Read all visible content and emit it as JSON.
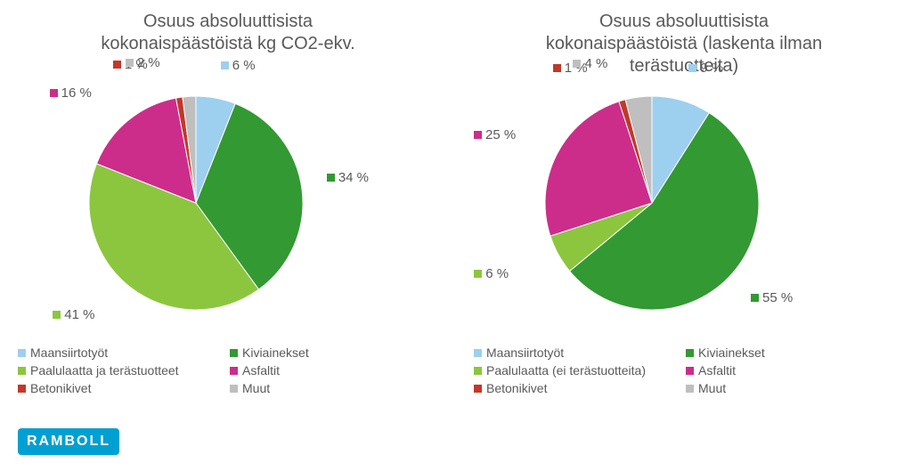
{
  "chart_left": {
    "type": "pie",
    "title": "Osuus absoluuttisista\nkokonaispäästöistä kg CO2-ekv.",
    "title_fontsize": 20,
    "title_color": "#595959",
    "background_color": "#ffffff",
    "label_fontsize": 15,
    "radius": 120,
    "slices": [
      {
        "label": "Maansiirtotyöt",
        "percent": 6,
        "color": "#9dcfef",
        "text": "6 %"
      },
      {
        "label": "Kiviainekset",
        "percent": 34,
        "color": "#339933",
        "text": "34 %"
      },
      {
        "label": "Paalulaatta ja terästuotteet",
        "percent": 41,
        "color": "#8cc63f",
        "text": "41 %"
      },
      {
        "label": "Asfaltit",
        "percent": 16,
        "color": "#cc2d8b",
        "text": "16 %"
      },
      {
        "label": "Betonikivet",
        "percent": 1,
        "color": "#c0392b",
        "text": "1 %"
      },
      {
        "label": "Muut",
        "percent": 2,
        "color": "#bfbfbf",
        "text": "2 %"
      }
    ],
    "legend": [
      {
        "label": "Maansiirtotyöt",
        "color": "#9dcfef"
      },
      {
        "label": "Kiviainekset",
        "color": "#339933"
      },
      {
        "label": "Paalulaatta ja terästuotteet",
        "color": "#8cc63f"
      },
      {
        "label": "Asfaltit",
        "color": "#cc2d8b"
      },
      {
        "label": "Betonikivet",
        "color": "#c0392b"
      },
      {
        "label": "Muut",
        "color": "#bfbfbf"
      }
    ],
    "legend_col_widths": [
      230,
      200
    ]
  },
  "chart_right": {
    "type": "pie",
    "title": "Osuus absoluuttisista\nkokonaispäästöistä (laskenta ilman\nterästuotteita)",
    "title_fontsize": 20,
    "title_color": "#595959",
    "background_color": "#ffffff",
    "label_fontsize": 15,
    "radius": 120,
    "slices": [
      {
        "label": "Maansiirtotyöt",
        "percent": 9,
        "color": "#9dcfef",
        "text": "9 %"
      },
      {
        "label": "Kiviainekset",
        "percent": 55,
        "color": "#339933",
        "text": "55 %"
      },
      {
        "label": "Paalulaatta (ei terästuotteita)",
        "percent": 6,
        "color": "#8cc63f",
        "text": "6 %"
      },
      {
        "label": "Asfaltit",
        "percent": 25,
        "color": "#cc2d8b",
        "text": "25 %"
      },
      {
        "label": "Betonikivet",
        "percent": 1,
        "color": "#c0392b",
        "text": "1 %"
      },
      {
        "label": "Muut",
        "percent": 4,
        "color": "#bfbfbf",
        "text": "4 %"
      }
    ],
    "legend": [
      {
        "label": "Maansiirtotyöt",
        "color": "#9dcfef"
      },
      {
        "label": "Kiviainekset",
        "color": "#339933"
      },
      {
        "label": "Paalulaatta (ei terästuotteita)",
        "color": "#8cc63f"
      },
      {
        "label": "Asfaltit",
        "color": "#cc2d8b"
      },
      {
        "label": "Betonikivet",
        "color": "#c0392b"
      },
      {
        "label": "Muut",
        "color": "#bfbfbf"
      }
    ],
    "legend_col_widths": [
      230,
      200
    ]
  },
  "logo_text": "RAMBOLL"
}
